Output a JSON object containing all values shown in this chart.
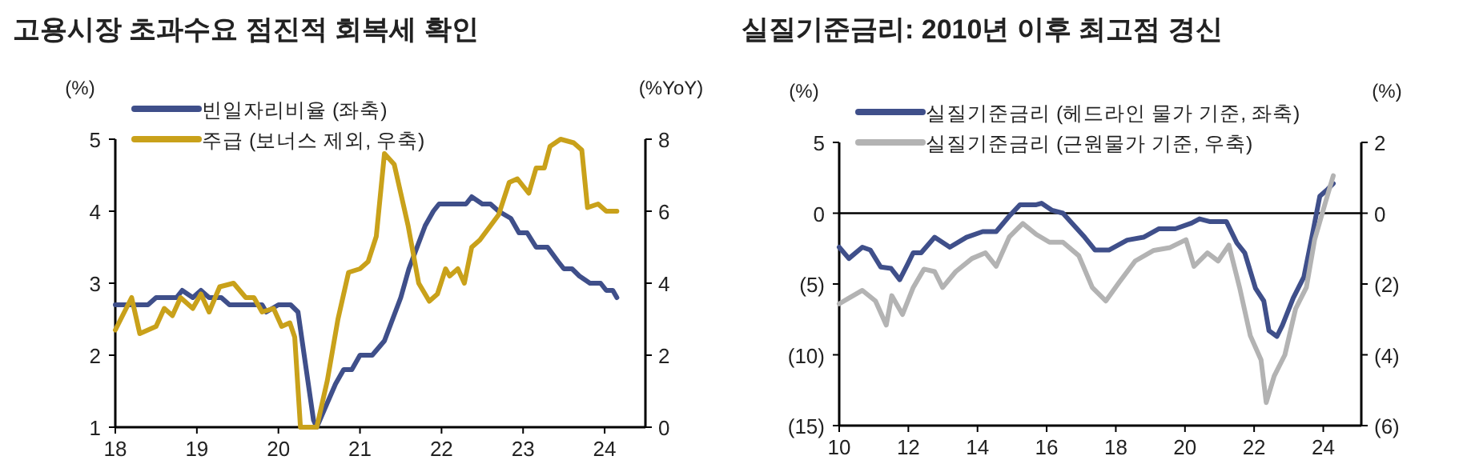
{
  "chart_data": [
    {
      "type": "line",
      "title": "고용시장 초과수요 점진적 회복세 확인",
      "ylabel": "(%)",
      "y2label": "(%YoY)",
      "legend": "top left",
      "grid": false,
      "xlim": [
        2018,
        2024.5
      ],
      "xticks": [
        {
          "value": 2018,
          "label": "18"
        },
        {
          "value": 2019,
          "label": "19"
        },
        {
          "value": 2020,
          "label": "20"
        },
        {
          "value": 2021,
          "label": "21"
        },
        {
          "value": 2022,
          "label": "22"
        },
        {
          "value": 2023,
          "label": "23"
        },
        {
          "value": 2024,
          "label": "24"
        }
      ],
      "ylim": [
        1,
        5
      ],
      "yticks": [
        1,
        2,
        3,
        4,
        5
      ],
      "y2lim": [
        0,
        8
      ],
      "y2ticks": [
        0,
        2,
        4,
        6,
        8
      ],
      "series": [
        {
          "name": "빈일자리비율 (좌축)",
          "color": "#3f4f8a",
          "x": [
            2018,
            2018.4,
            2018.5,
            2018.75,
            2018.82,
            2018.95,
            2019.05,
            2019.15,
            2019.3,
            2019.4,
            2019.8,
            2019.85,
            2020.0,
            2020.15,
            2020.24,
            2020.43,
            2020.47,
            2020.7,
            2020.8,
            2020.9,
            2021.0,
            2021.15,
            2021.3,
            2021.5,
            2021.6,
            2021.8,
            2021.9,
            2021.97,
            2022.3,
            2022.37,
            2022.5,
            2022.6,
            2022.7,
            2022.85,
            2022.95,
            2023.05,
            2023.16,
            2023.3,
            2023.43,
            2023.5,
            2023.6,
            2023.69,
            2023.82,
            2023.95,
            2024.02,
            2024.1,
            2024.15
          ],
          "values": [
            2.7,
            2.7,
            2.8,
            2.8,
            2.9,
            2.8,
            2.9,
            2.8,
            2.8,
            2.7,
            2.7,
            2.6,
            2.7,
            2.7,
            2.6,
            1.1,
            1.0,
            1.6,
            1.8,
            1.8,
            2.0,
            2.0,
            2.2,
            2.8,
            3.2,
            3.8,
            4.0,
            4.1,
            4.1,
            4.2,
            4.1,
            4.1,
            4.0,
            3.9,
            3.7,
            3.7,
            3.5,
            3.5,
            3.3,
            3.2,
            3.2,
            3.1,
            3.0,
            3.0,
            2.9,
            2.9,
            2.8
          ]
        },
        {
          "name": "주급 (보너스 제외, 우축)",
          "color": "#c9a11a",
          "axis": "y2",
          "x": [
            2018.0,
            2018.2,
            2018.3,
            2018.5,
            2018.6,
            2018.7,
            2018.8,
            2018.95,
            2019.05,
            2019.15,
            2019.28,
            2019.45,
            2019.6,
            2019.7,
            2019.8,
            2019.94,
            2020.04,
            2020.14,
            2020.2,
            2020.27,
            2020.47,
            2020.6,
            2020.73,
            2020.86,
            2021.0,
            2021.1,
            2021.2,
            2021.3,
            2021.42,
            2021.59,
            2021.72,
            2021.85,
            2021.95,
            2022.05,
            2022.1,
            2022.2,
            2022.28,
            2022.37,
            2022.47,
            2022.7,
            2022.83,
            2022.93,
            2023.07,
            2023.16,
            2023.26,
            2023.33,
            2023.46,
            2023.62,
            2023.72,
            2023.79,
            2023.92,
            2024.02,
            2024.15
          ],
          "values": [
            2.7,
            3.6,
            2.6,
            2.8,
            3.3,
            3.1,
            3.6,
            3.3,
            3.7,
            3.2,
            3.9,
            4.0,
            3.6,
            3.6,
            3.2,
            3.3,
            2.8,
            2.9,
            2.5,
            0,
            0,
            1.3,
            3.0,
            4.3,
            4.4,
            4.6,
            5.3,
            7.6,
            7.3,
            5.6,
            4.0,
            3.5,
            3.7,
            4.4,
            4.2,
            4.4,
            4.0,
            5.0,
            5.2,
            5.9,
            6.8,
            6.9,
            6.5,
            7.2,
            7.2,
            7.8,
            8.0,
            7.9,
            7.7,
            6.1,
            6.2,
            6.0,
            6.0
          ]
        }
      ]
    },
    {
      "type": "line",
      "title": "실질기준금리: 2010년 이후 최고점 경신",
      "ylabel": "(%)",
      "y2label": "(%)",
      "legend": "top left",
      "grid": false,
      "xlim": [
        2010,
        2025.1
      ],
      "xticks": [
        {
          "value": 2010,
          "label": "10"
        },
        {
          "value": 2012,
          "label": "12"
        },
        {
          "value": 2014,
          "label": "14"
        },
        {
          "value": 2016,
          "label": "16"
        },
        {
          "value": 2018,
          "label": "18"
        },
        {
          "value": 2020,
          "label": "20"
        },
        {
          "value": 2022,
          "label": "22"
        },
        {
          "value": 2024,
          "label": "24"
        }
      ],
      "ylim": [
        -15,
        5
      ],
      "yticks": [
        {
          "value": -15,
          "label": "(15)"
        },
        {
          "value": -10,
          "label": "(10)"
        },
        {
          "value": -5,
          "label": "(5)"
        },
        0,
        5
      ],
      "y2lim": [
        -6,
        2
      ],
      "y2ticks": [
        {
          "value": -6,
          "label": "(6)"
        },
        {
          "value": -4,
          "label": "(4)"
        },
        {
          "value": -2,
          "label": "(2)"
        },
        0,
        2
      ],
      "ref_lines": [
        {
          "axis": "y",
          "value": 0,
          "color": "#000000"
        }
      ],
      "series": [
        {
          "name": "실질기준금리 (헤드라인 물가 기준, 좌축)",
          "color": "#3f4f8a",
          "x": [
            2010,
            2010.28,
            2010.67,
            2010.9,
            2011.2,
            2011.5,
            2011.75,
            2011.98,
            2012.14,
            2012.37,
            2012.76,
            2013.2,
            2013.68,
            2014.15,
            2014.54,
            2014.92,
            2015.23,
            2015.7,
            2015.85,
            2016.16,
            2016.47,
            2017.1,
            2017.4,
            2017.8,
            2018.33,
            2018.8,
            2019.25,
            2019.72,
            2020.19,
            2020.42,
            2020.73,
            2021.2,
            2021.5,
            2021.73,
            2022.04,
            2022.28,
            2022.43,
            2022.66,
            2022.82,
            2023.13,
            2023.44,
            2023.67,
            2023.9,
            2024.13,
            2024.29
          ],
          "values": [
            -2.4,
            -3.2,
            -2.4,
            -2.6,
            -3.8,
            -3.9,
            -4.7,
            -3.6,
            -2.8,
            -2.8,
            -1.7,
            -2.4,
            -1.7,
            -1.3,
            -1.3,
            -0.2,
            0.6,
            0.6,
            0.7,
            0.2,
            0,
            -1.7,
            -2.6,
            -2.6,
            -1.9,
            -1.7,
            -1.1,
            -1.1,
            -0.7,
            -0.4,
            -0.6,
            -0.6,
            -2.1,
            -2.8,
            -5.3,
            -6.2,
            -8.3,
            -8.7,
            -7.9,
            -6.0,
            -4.5,
            -1.7,
            1.2,
            1.7,
            2.1
          ]
        },
        {
          "name": "실질기준금리 (근원물가 기준, 우축)",
          "color": "#b3b3b3",
          "axis": "y2",
          "x": [
            2010,
            2010.28,
            2010.67,
            2011.05,
            2011.36,
            2011.52,
            2011.83,
            2012.14,
            2012.45,
            2012.76,
            2012.99,
            2013.37,
            2013.84,
            2014.23,
            2014.54,
            2014.92,
            2015.31,
            2015.7,
            2016.08,
            2016.47,
            2016.93,
            2017.32,
            2017.71,
            2018.1,
            2018.56,
            2019.1,
            2019.57,
            2020.03,
            2020.26,
            2020.65,
            2020.96,
            2021.27,
            2021.58,
            2021.89,
            2022.2,
            2022.35,
            2022.58,
            2022.89,
            2023.2,
            2023.51,
            2023.75,
            2024.06,
            2024.29
          ],
          "values": [
            -2.56,
            -2.4,
            -2.18,
            -2.48,
            -3.16,
            -2.33,
            -2.86,
            -2.1,
            -1.58,
            -1.65,
            -2.1,
            -1.65,
            -1.28,
            -1.12,
            -1.5,
            -0.67,
            -0.29,
            -0.6,
            -0.82,
            -0.82,
            -1.2,
            -2.1,
            -2.48,
            -1.95,
            -1.35,
            -1.05,
            -0.97,
            -0.75,
            -1.5,
            -1.12,
            -1.35,
            -0.9,
            -2.1,
            -3.46,
            -4.14,
            -5.35,
            -4.6,
            -4.0,
            -2.7,
            -2.1,
            -0.75,
            0.3,
            1.06
          ]
        }
      ]
    }
  ]
}
